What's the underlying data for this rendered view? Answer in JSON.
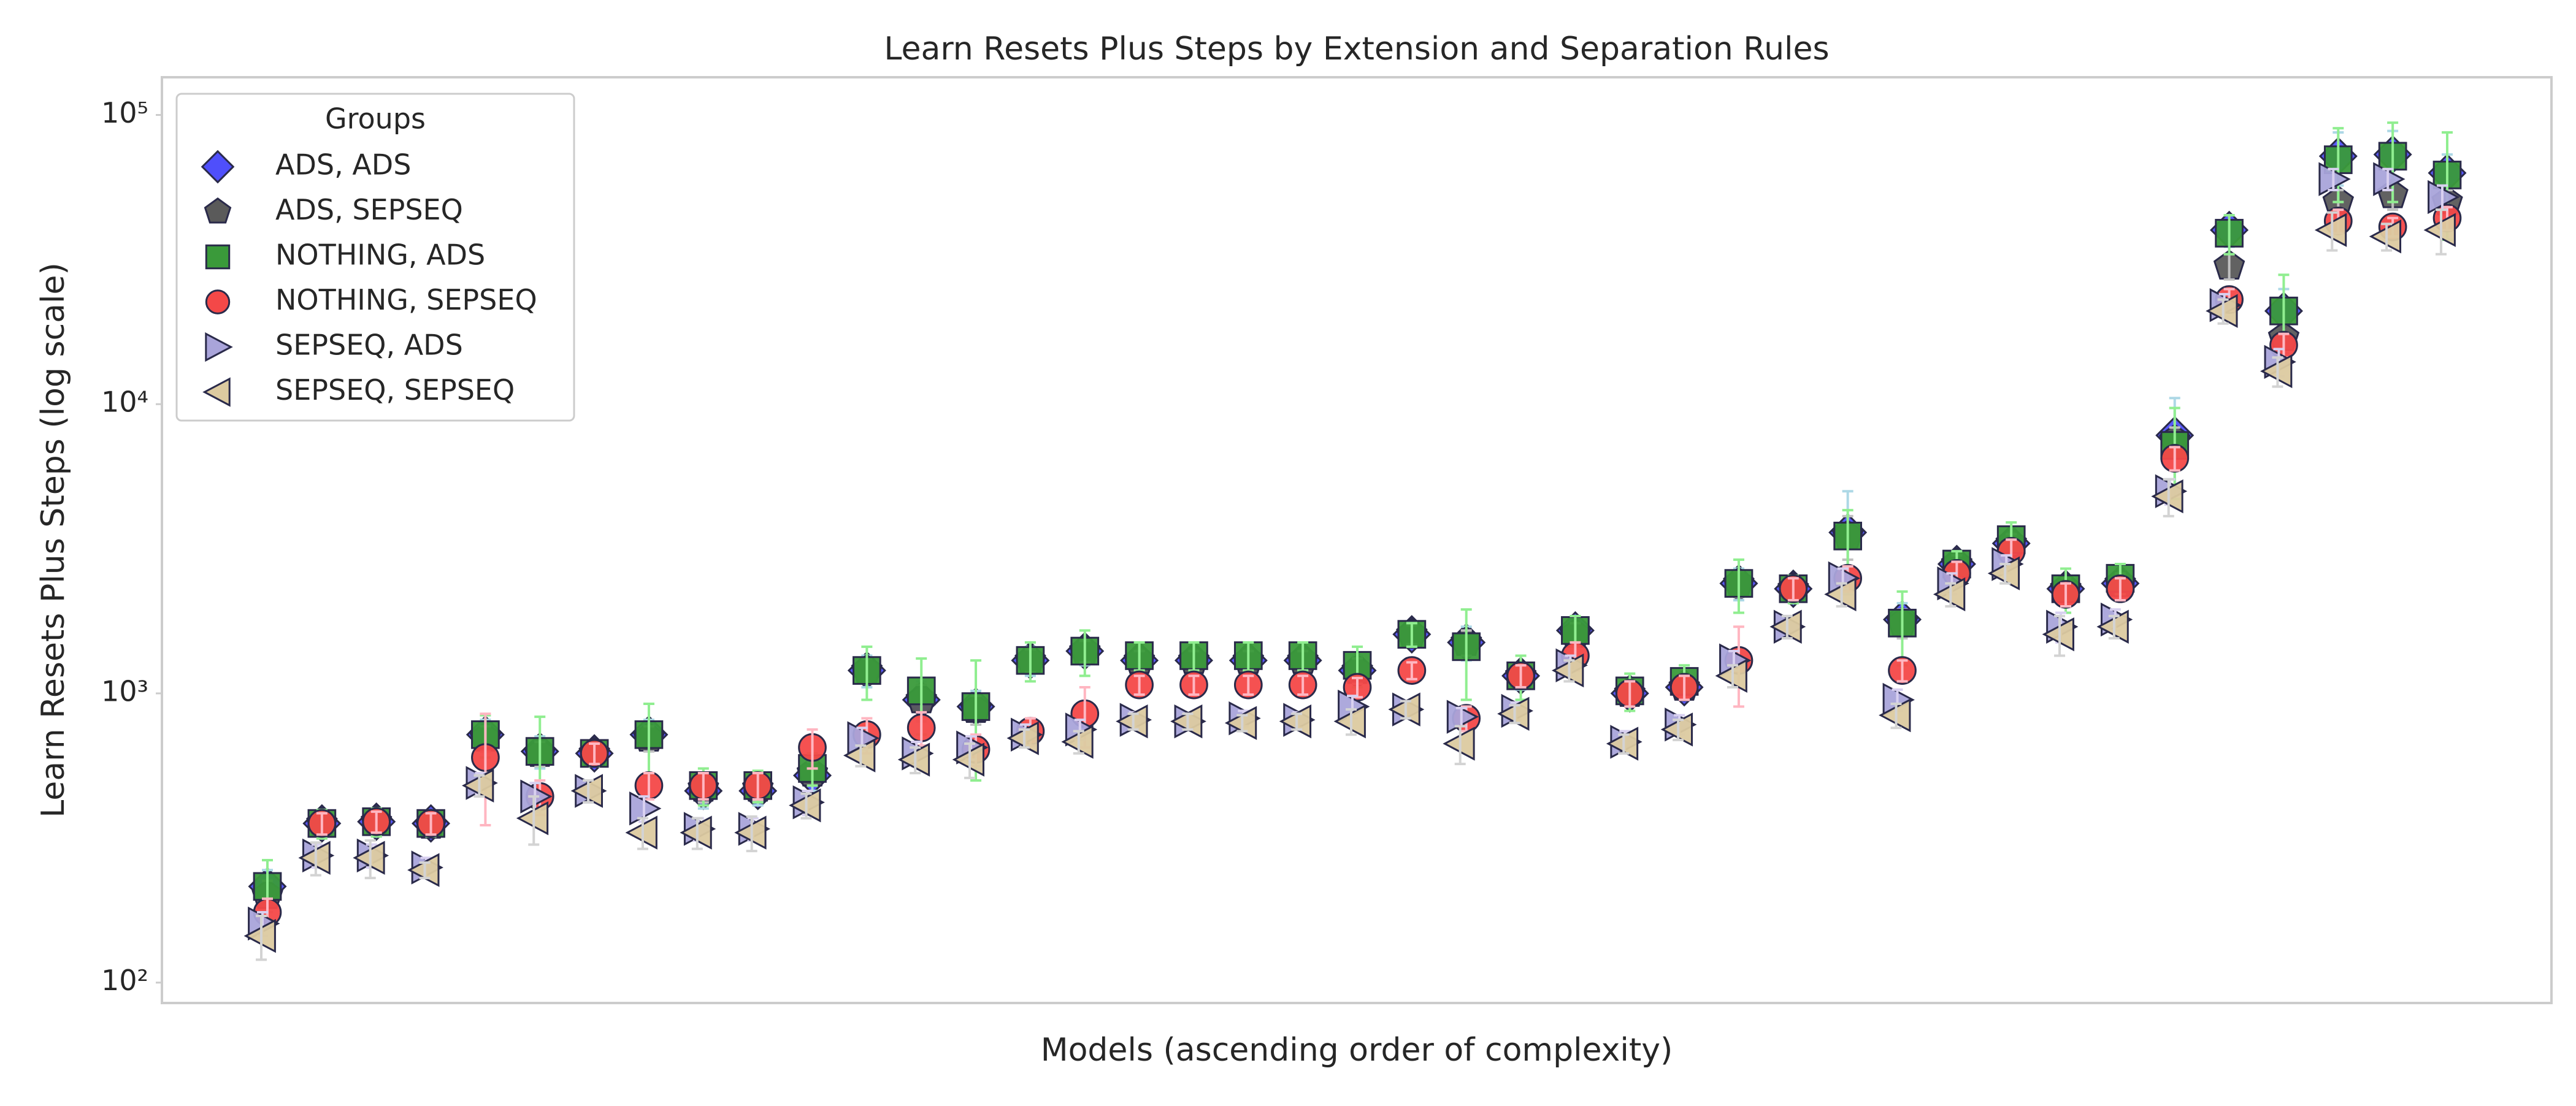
{
  "chart_data": {
    "type": "scatter",
    "title": "Learn Resets Plus Steps by Extension and Separation Rules",
    "x_label": "Models (ascending order of complexity)",
    "y_label": "Learn Resets Plus Steps (log scale)",
    "categories": [
      null,
      null,
      null,
      null,
      null,
      null,
      null,
      null,
      null,
      null,
      null,
      null,
      null,
      null,
      null,
      null,
      null,
      null,
      null,
      null,
      null,
      null,
      null,
      null,
      null,
      null,
      null,
      null,
      null,
      null,
      null,
      null,
      null,
      null,
      null,
      null,
      null,
      null,
      null,
      null,
      null
    ],
    "log_y": true,
    "ylim": [
      85,
      135000
    ],
    "yticks": [
      {
        "value": 100,
        "label": "10²"
      },
      {
        "value": 1000,
        "label": "10³"
      },
      {
        "value": 10000,
        "label": "10⁴"
      },
      {
        "value": 100000,
        "label": "10⁵"
      }
    ],
    "grid": false,
    "legend_title": "Groups",
    "legend_loc": "upper left",
    "series": [
      {
        "name": "ADS, ADS",
        "marker": "diamond",
        "color": "#4f4ffb",
        "error_color": "#add8e6",
        "values": [
          215,
          355,
          360,
          355,
          720,
          630,
          620,
          720,
          460,
          460,
          520,
          1200,
          950,
          900,
          1300,
          1400,
          1300,
          1300,
          1300,
          1300,
          1200,
          1600,
          1500,
          1150,
          1650,
          1000,
          1050,
          2400,
          2300,
          3600,
          1800,
          2800,
          3300,
          2300,
          2400,
          7800,
          40000,
          21000,
          72000,
          73000,
          63000
        ],
        "errors": [
          30,
          40,
          40,
          35,
          90,
          80,
          60,
          90,
          60,
          50,
          60,
          150,
          150,
          120,
          150,
          150,
          120,
          120,
          120,
          120,
          150,
          150,
          200,
          120,
          180,
          100,
          100,
          300,
          200,
          1400,
          250,
          250,
          300,
          250,
          250,
          2700,
          5000,
          4000,
          15000,
          15000,
          10000
        ]
      },
      {
        "name": "ADS, SEPSEQ",
        "marker": "pentagon",
        "color": "#5a5a5a",
        "error_color": "#c0c0c0",
        "values": [
          200,
          355,
          360,
          350,
          700,
          620,
          620,
          700,
          470,
          470,
          530,
          1200,
          950,
          880,
          1300,
          1400,
          1300,
          1300,
          1300,
          1300,
          1200,
          1600,
          1500,
          1150,
          1600,
          1000,
          1050,
          2400,
          2300,
          3500,
          1750,
          2800,
          3300,
          2300,
          2400,
          7500,
          30000,
          17000,
          50000,
          53000,
          50000
        ],
        "errors": [
          25,
          35,
          35,
          30,
          70,
          60,
          50,
          70,
          50,
          45,
          50,
          120,
          120,
          100,
          120,
          120,
          100,
          100,
          100,
          100,
          120,
          120,
          150,
          100,
          150,
          80,
          80,
          250,
          180,
          600,
          200,
          200,
          250,
          200,
          200,
          800,
          3000,
          2000,
          5000,
          6000,
          5000
        ]
      },
      {
        "name": "NOTHING, ADS",
        "marker": "square",
        "color": "#3a9a3a",
        "error_color": "#90ee90",
        "values": [
          215,
          355,
          360,
          355,
          720,
          630,
          620,
          720,
          480,
          480,
          550,
          1200,
          1020,
          900,
          1300,
          1400,
          1350,
          1350,
          1350,
          1350,
          1250,
          1600,
          1450,
          1150,
          1650,
          1020,
          1100,
          2400,
          2300,
          3500,
          1750,
          2800,
          3400,
          2300,
          2500,
          7200,
          39000,
          21000,
          70000,
          72000,
          62000
        ],
        "errors": [
          50,
          40,
          40,
          35,
          120,
          200,
          60,
          200,
          70,
          60,
          70,
          250,
          300,
          400,
          200,
          250,
          150,
          150,
          150,
          150,
          200,
          150,
          500,
          200,
          200,
          150,
          150,
          500,
          250,
          800,
          500,
          300,
          500,
          400,
          300,
          2500,
          6000,
          7000,
          20000,
          22000,
          25000
        ]
      },
      {
        "name": "NOTHING, SEPSEQ",
        "marker": "circle",
        "color": "#f44848",
        "error_color": "#ffb6c1",
        "values": [
          175,
          355,
          360,
          355,
          600,
          440,
          620,
          480,
          480,
          480,
          650,
          720,
          760,
          640,
          740,
          850,
          1070,
          1070,
          1070,
          1070,
          1050,
          1200,
          820,
          1150,
          1350,
          1000,
          1050,
          1300,
          2300,
          2500,
          1200,
          2600,
          3100,
          2200,
          2300,
          6500,
          23000,
          16000,
          43000,
          41000,
          44000
        ],
        "errors": [
          20,
          30,
          30,
          30,
          250,
          60,
          50,
          50,
          50,
          50,
          100,
          100,
          100,
          80,
          80,
          200,
          80,
          80,
          80,
          80,
          80,
          80,
          80,
          100,
          150,
          100,
          100,
          400,
          200,
          250,
          100,
          250,
          300,
          200,
          200,
          600,
          2000,
          1500,
          4000,
          3000,
          4000
        ]
      },
      {
        "name": "SEPSEQ, ADS",
        "marker": "triangle-right",
        "color": "#a9a4da",
        "error_color": "#d8d0f0",
        "values": [
          160,
          275,
          275,
          250,
          490,
          440,
          460,
          400,
          340,
          340,
          420,
          700,
          620,
          650,
          720,
          750,
          810,
          800,
          820,
          810,
          900,
          880,
          830,
          870,
          1250,
          680,
          780,
          1300,
          1700,
          2500,
          950,
          2400,
          2800,
          1700,
          1800,
          5000,
          22000,
          14000,
          60000,
          60000,
          52000
        ],
        "errors": [
          15,
          25,
          25,
          20,
          40,
          50,
          40,
          40,
          30,
          30,
          40,
          60,
          60,
          60,
          60,
          60,
          50,
          50,
          50,
          50,
          80,
          60,
          60,
          60,
          100,
          60,
          60,
          100,
          150,
          200,
          80,
          200,
          200,
          200,
          150,
          500,
          2000,
          1500,
          5000,
          5000,
          5000
        ]
      },
      {
        "name": "SEPSEQ, SEPSEQ",
        "marker": "triangle-left",
        "color": "#dccaa0",
        "error_color": "#d3d3d3",
        "values": [
          145,
          270,
          270,
          245,
          480,
          370,
          460,
          330,
          330,
          330,
          410,
          610,
          590,
          590,
          700,
          680,
          800,
          800,
          790,
          800,
          800,
          880,
          670,
          850,
          1200,
          670,
          750,
          1150,
          1700,
          2200,
          840,
          2200,
          2600,
          1600,
          1700,
          4800,
          21000,
          13000,
          40000,
          38000,
          40000
        ],
        "errors": [
          25,
          35,
          40,
          15,
          40,
          70,
          40,
          40,
          40,
          45,
          40,
          50,
          60,
          80,
          50,
          60,
          50,
          50,
          50,
          50,
          80,
          60,
          100,
          60,
          100,
          50,
          60,
          100,
          150,
          200,
          80,
          200,
          200,
          250,
          150,
          700,
          2000,
          1500,
          6000,
          4000,
          7000
        ]
      }
    ]
  }
}
